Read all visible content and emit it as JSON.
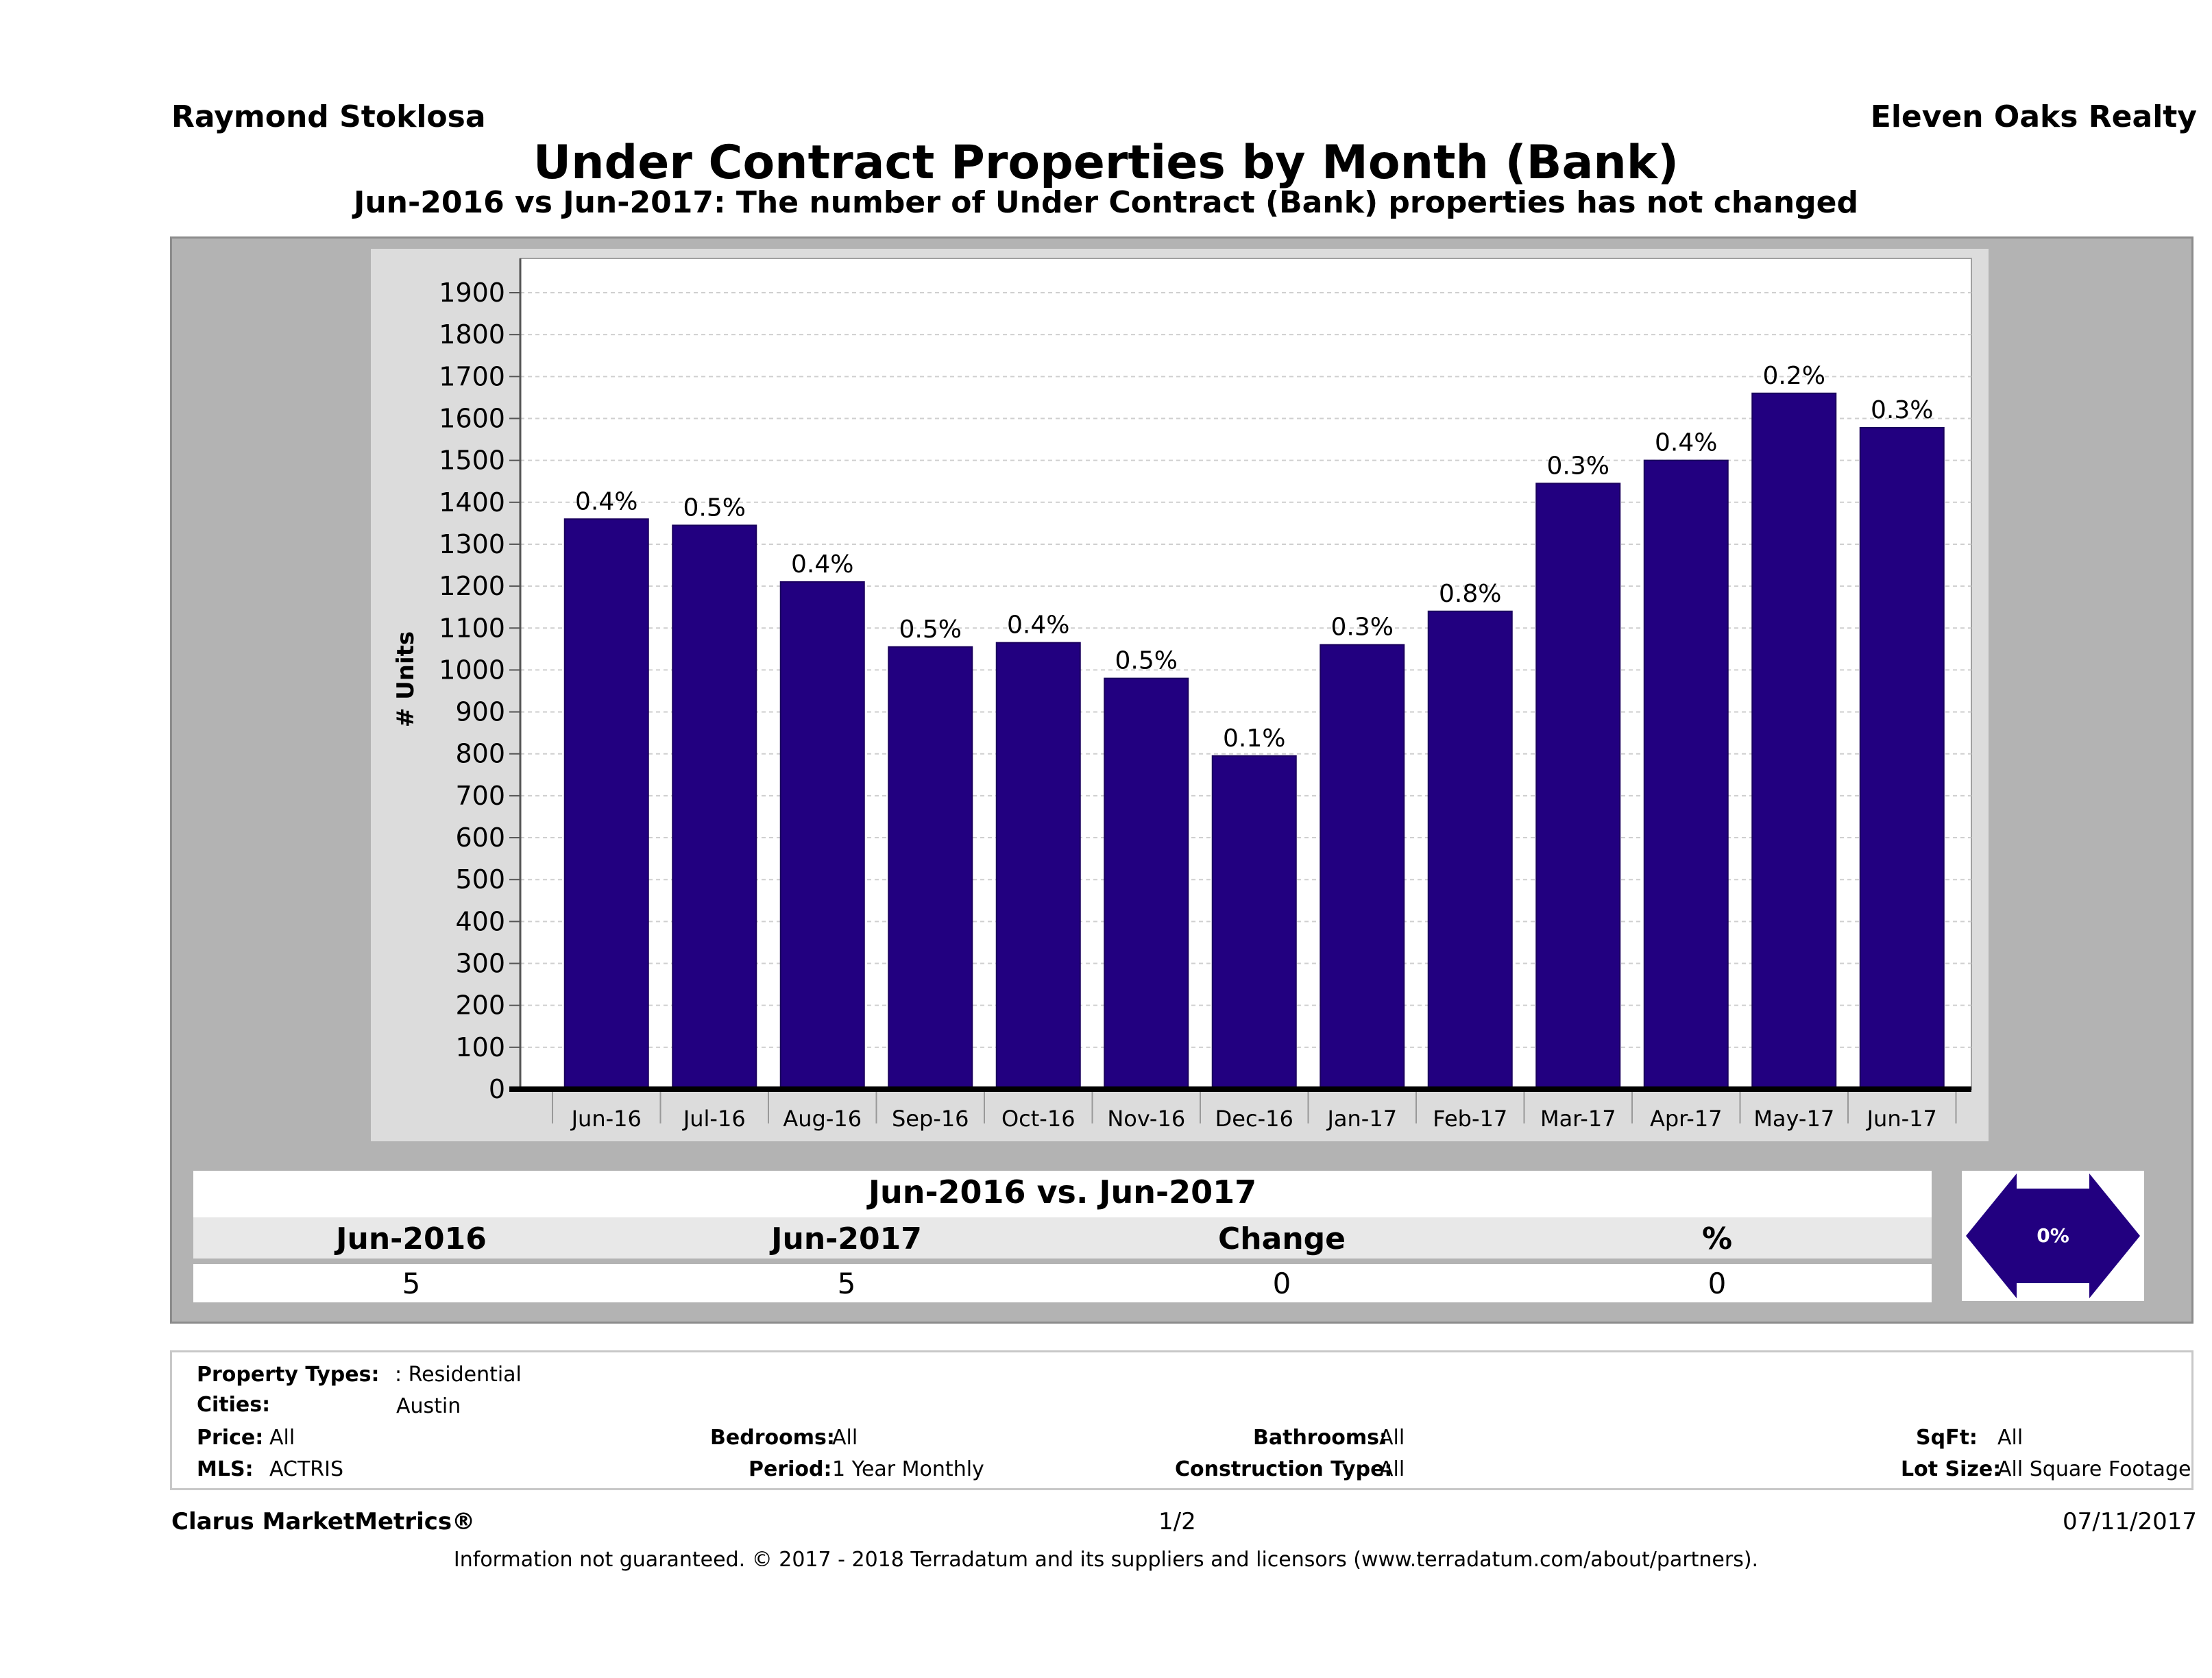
{
  "header": {
    "agent": "Raymond Stoklosa",
    "company": "Eleven Oaks Realty",
    "title": "Under Contract Properties by Month (Bank)",
    "subtitle": "Jun-2016 vs Jun-2017: The number of Under Contract (Bank)  properties has not changed"
  },
  "chart_data": {
    "type": "bar",
    "categories": [
      "Jun-16",
      "Jul-16",
      "Aug-16",
      "Sep-16",
      "Oct-16",
      "Nov-16",
      "Dec-16",
      "Jan-17",
      "Feb-17",
      "Mar-17",
      "Apr-17",
      "May-17",
      "Jun-17"
    ],
    "values": [
      1360,
      1345,
      1210,
      1055,
      1065,
      980,
      795,
      1060,
      1140,
      1445,
      1500,
      1660,
      1578
    ],
    "data_labels": [
      "0.4%",
      "0.5%",
      "0.4%",
      "0.5%",
      "0.4%",
      "0.5%",
      "0.1%",
      "0.3%",
      "0.8%",
      "0.3%",
      "0.4%",
      "0.2%",
      "0.3%"
    ],
    "ylabel": "# Units",
    "ylim": [
      0,
      1900
    ],
    "yticks": [
      "0",
      "100",
      "200",
      "300",
      "400",
      "500",
      "600",
      "700",
      "800",
      "900",
      "1000",
      "1100",
      "1200",
      "1300",
      "1400",
      "1500",
      "1600",
      "1700",
      "1800",
      "1900"
    ],
    "bar_color": "#220080",
    "grid": true
  },
  "summary": {
    "title": "Jun-2016 vs. Jun-2017",
    "labels": [
      "Jun-2016",
      "Jun-2017",
      "Change",
      "%"
    ],
    "values": [
      "5",
      "5",
      "0",
      "0"
    ],
    "badge": "0%"
  },
  "filters": {
    "property_types_label": "Property Types:",
    "property_types_value": ": Residential",
    "cities_label": "Cities:",
    "cities_value": "Austin",
    "price_label": "Price:",
    "price_value": "All",
    "bedrooms_label": "Bedrooms:",
    "bedrooms_value": "All",
    "bathrooms_label": "Bathrooms:",
    "bathrooms_value": "All",
    "sqft_label": "SqFt:",
    "sqft_value": "All",
    "mls_label": "MLS:",
    "mls_value": "ACTRIS",
    "period_label": "Period:",
    "period_value": "1 Year Monthly",
    "construction_label": "Construction Type:",
    "construction_value": "All",
    "lot_label": "Lot Size:",
    "lot_value": "All Square Footage"
  },
  "footer": {
    "brand": "Clarus MarketMetrics®",
    "page": "1/2",
    "date": "07/11/2017",
    "disclaimer": "Information not guaranteed. © 2017 - 2018 Terradatum and its suppliers and licensors (www.terradatum.com/about/partners)."
  }
}
